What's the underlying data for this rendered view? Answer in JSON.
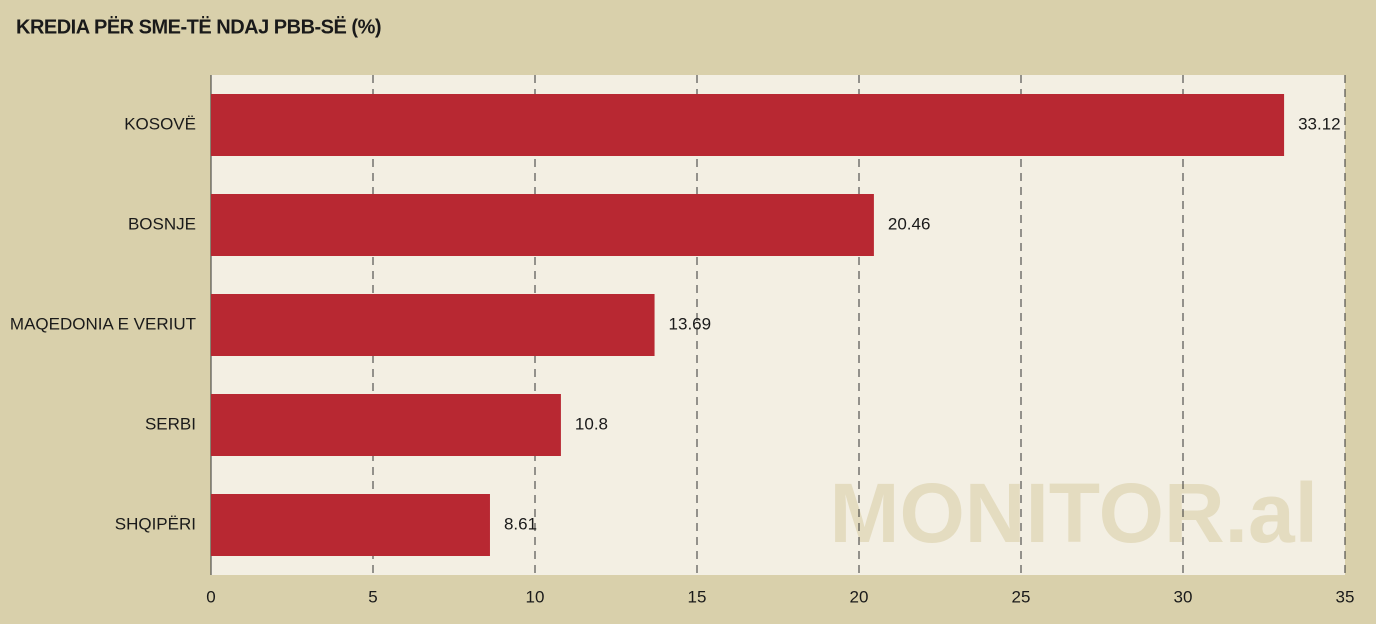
{
  "chart_data": {
    "type": "barh",
    "title": "KREDIA PËR SME-TË NDAJ PBB-SË (%)",
    "categories": [
      "KOSOVË",
      "BOSNJE",
      "MAQEDONIA E VERIUT",
      "SERBI",
      "SHQIPËRI"
    ],
    "values": [
      33.12,
      20.46,
      13.69,
      10.8,
      8.61
    ],
    "color": "#b82832",
    "xlim": [
      0,
      35
    ],
    "xticks": [
      0,
      5,
      10,
      15,
      20,
      25,
      30,
      35
    ],
    "grid": true,
    "watermark": "MONITOR.al"
  }
}
